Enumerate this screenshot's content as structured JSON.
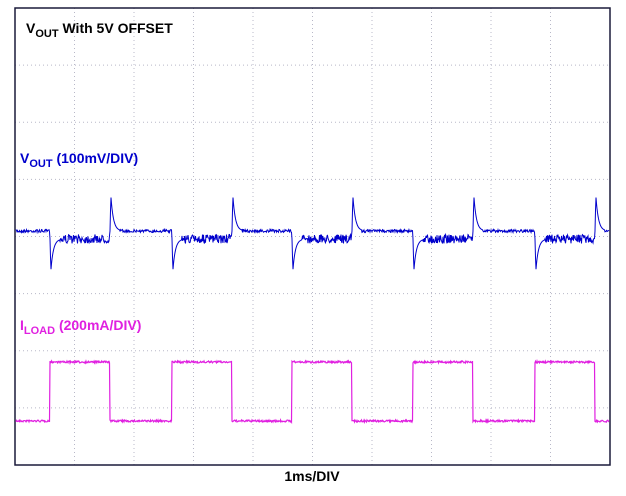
{
  "chart_data": {
    "type": "scope",
    "title": {
      "main": "V",
      "sub": "OUT",
      "rest": " With 5V OFFSET"
    },
    "traces": [
      {
        "main": "V",
        "sub": "OUT",
        "rest": " (100mV/DIV)",
        "color": "#0000cc"
      },
      {
        "main": "I",
        "sub": "LOAD",
        "rest": " (200mA/DIV)",
        "color": "#e020e0"
      }
    ],
    "x_label": "1ms/DIV"
  }
}
